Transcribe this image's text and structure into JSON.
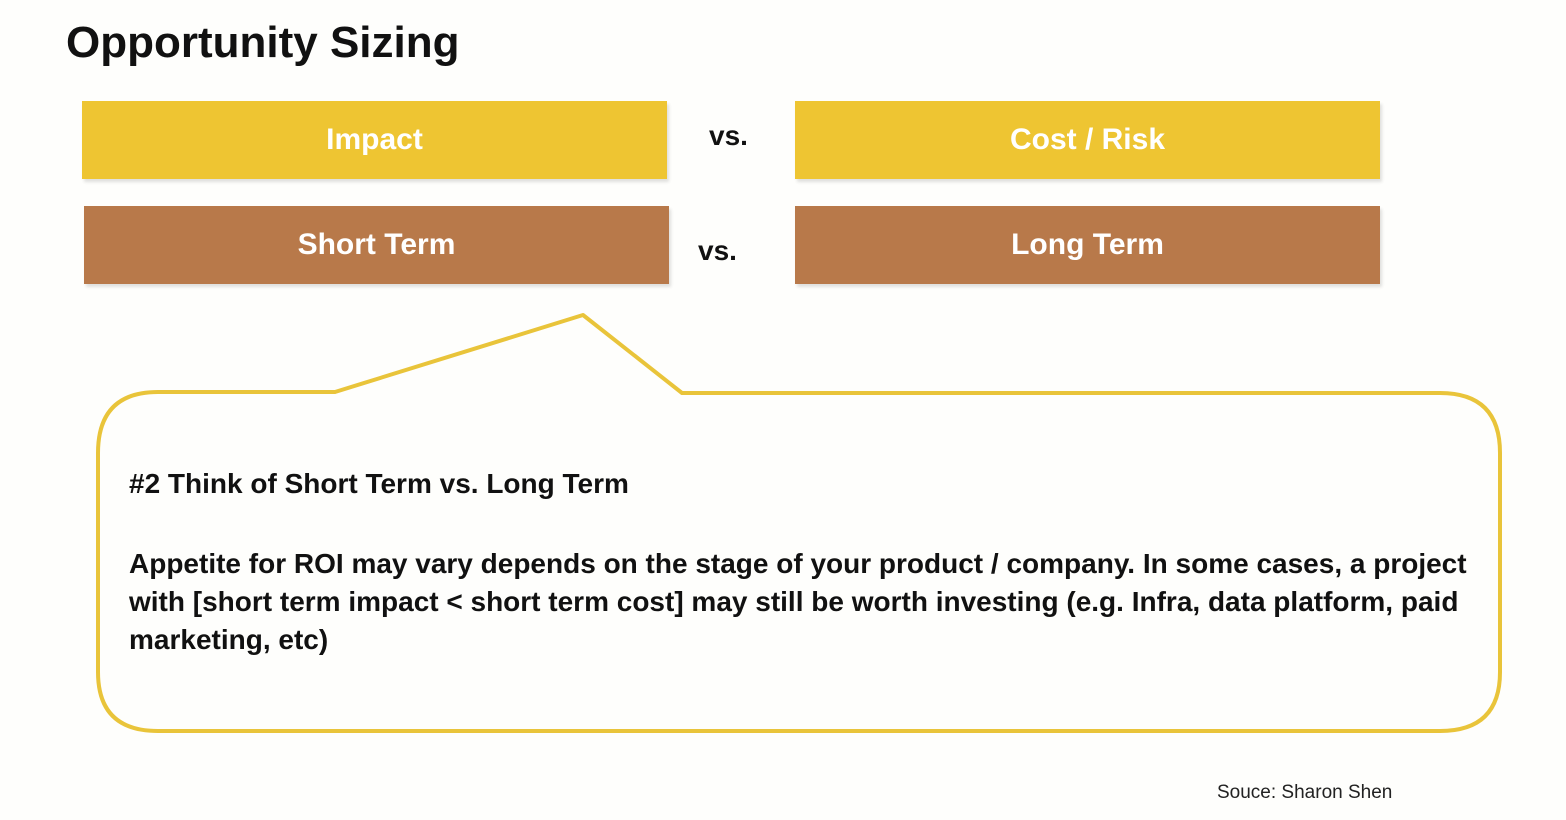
{
  "slide": {
    "title": "Opportunity Sizing",
    "row1": {
      "left_label": "Impact",
      "vs_label": "vs.",
      "right_label": "Cost / Risk"
    },
    "row2": {
      "left_label": "Short Term",
      "vs_label": "vs.",
      "right_label": "Long Term"
    },
    "callout": {
      "heading": "#2 Think of Short Term vs. Long Term",
      "body": "Appetite for ROI may vary depends on the stage of your product / company. In some cases, a project with [short term impact < short term cost] may still be worth investing (e.g. Infra, data platform, paid marketing, etc)"
    },
    "source": "Souce: Sharon Shen"
  },
  "colors": {
    "yellow_bar": "#eec532",
    "brown_bar": "#b8794a",
    "callout_border": "#e9c43a",
    "background": "#fefefc"
  }
}
